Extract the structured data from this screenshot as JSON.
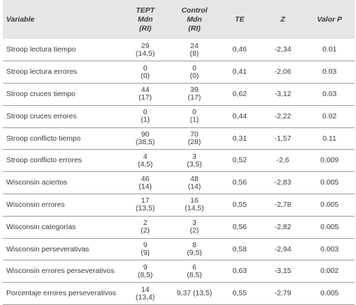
{
  "header": {
    "variable": "Variable",
    "tept": [
      "TEPT",
      "Mdn",
      "(RI)"
    ],
    "control": [
      "Control",
      "Mdn",
      "(RI)"
    ],
    "te": "TE",
    "z": "Z",
    "p": "Valor P"
  },
  "rows": [
    {
      "variable": "Stroop lectura tiempo",
      "tept": [
        "29",
        "(14,5)"
      ],
      "control": [
        "24",
        "(8)"
      ],
      "te": "0,46",
      "z": "-2,34",
      "p": "0.01"
    },
    {
      "variable": "Stroop lectura errores",
      "tept": [
        "0",
        "(0)"
      ],
      "control": [
        "0",
        "(0)"
      ],
      "te": "0,41",
      "z": "-2,06",
      "p": "0.03"
    },
    {
      "variable": "Stroop cruces tiempo",
      "tept": [
        "44",
        "(17)"
      ],
      "control": [
        "39",
        "(17)"
      ],
      "te": "0,62",
      "z": "-3,12",
      "p": "0.03"
    },
    {
      "variable": "Stroop cruces errores",
      "tept": [
        "0",
        "(1)"
      ],
      "control": [
        "0",
        "(1)"
      ],
      "te": "0,44",
      "z": "-2,22",
      "p": "0.02"
    },
    {
      "variable": "Stroop conflicto tiempo",
      "tept": [
        "90",
        "(38,5)"
      ],
      "control": [
        "70",
        "(28)"
      ],
      "te": "0,31",
      "z": "-1,57",
      "p": "0.11"
    },
    {
      "variable": "Stroop conflicto errores",
      "tept": [
        "4",
        "(4,5)"
      ],
      "control": [
        "3",
        "(3,5)"
      ],
      "te": "0,52",
      "z": "-2,6",
      "p": "0.009"
    },
    {
      "variable": "Wisconsin aciertos",
      "tept": [
        "46",
        "(14)"
      ],
      "control": [
        "48",
        "(14)"
      ],
      "te": "0,56",
      "z": "-2,83",
      "p": "0.005"
    },
    {
      "variable": "Wisconsin errores",
      "tept": [
        "17",
        "(13,5)"
      ],
      "control": [
        "16",
        "(14,5)"
      ],
      "te": "0,55",
      "z": "-2,78",
      "p": "0.005"
    },
    {
      "variable": "Wisconsin categorías",
      "tept": [
        "2",
        "(2)"
      ],
      "control": [
        "3",
        "(2)"
      ],
      "te": "0,56",
      "z": "-2,82",
      "p": "0.005"
    },
    {
      "variable": "Wisconsin perseverativas",
      "tept": [
        "9",
        "(9)"
      ],
      "control": [
        "8",
        "(9,5)"
      ],
      "te": "0,58",
      "z": "-2,94",
      "p": "0.003"
    },
    {
      "variable": "Wisconsin errores perseverativos",
      "tept": [
        "9",
        "(8,5)"
      ],
      "control": [
        "6",
        "(8,5)"
      ],
      "te": "0,63",
      "z": "-3,15",
      "p": "0.002"
    },
    {
      "variable": "Porcentaje errores perseverativos",
      "tept": [
        "14",
        "(13,4)"
      ],
      "control": [
        "9,37 (13,5)"
      ],
      "te": "0,55",
      "z": "-2,79",
      "p": "0.005"
    }
  ]
}
